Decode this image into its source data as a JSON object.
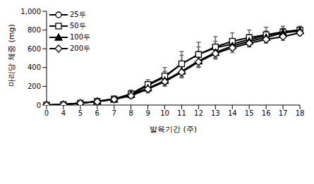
{
  "chart_data": {
    "type": "line",
    "x_label": "발육기간 (주)",
    "y_label": "마리당 체중 (mg)",
    "categories": [
      "0",
      "4",
      "5",
      "6",
      "7",
      "8",
      "9",
      "10",
      "11",
      "12",
      "13",
      "14",
      "15",
      "16",
      "17",
      "18"
    ],
    "ylim": [
      0,
      1000
    ],
    "yticks": [
      0,
      200,
      400,
      600,
      800,
      {
        "value": 1000,
        "label": "1,000"
      }
    ],
    "grid": false,
    "legend": "upper left",
    "series": [
      {
        "name": "25두",
        "color": "#000000",
        "marker": "circle",
        "values": [
          0,
          5,
          20,
          40,
          65,
          110,
          210,
          300,
          440,
          540,
          610,
          650,
          700,
          740,
          780,
          800
        ],
        "errors": [
          0,
          1,
          2,
          5,
          10,
          30,
          40,
          60,
          90,
          80,
          70,
          60,
          50,
          50,
          40,
          30
        ]
      },
      {
        "name": "50두",
        "color": "#000000",
        "marker": "square",
        "values": [
          0,
          5,
          20,
          40,
          65,
          120,
          220,
          310,
          440,
          540,
          620,
          680,
          720,
          750,
          780,
          800
        ],
        "errors": [
          0,
          1,
          2,
          5,
          10,
          40,
          50,
          90,
          130,
          130,
          110,
          90,
          80,
          80,
          60,
          40
        ]
      },
      {
        "name": "100두",
        "color": "#000000",
        "marker": "triangle",
        "values": [
          0,
          5,
          20,
          40,
          60,
          110,
          180,
          260,
          360,
          470,
          560,
          630,
          680,
          720,
          770,
          790
        ],
        "errors": [
          0,
          1,
          2,
          5,
          10,
          30,
          40,
          50,
          60,
          60,
          60,
          50,
          50,
          40,
          40,
          30
        ]
      },
      {
        "name": "200두",
        "color": "#000000",
        "marker": "diamond",
        "values": [
          0,
          5,
          20,
          35,
          60,
          100,
          170,
          250,
          350,
          460,
          550,
          610,
          660,
          700,
          730,
          770
        ],
        "errors": [
          0,
          1,
          2,
          5,
          10,
          30,
          40,
          50,
          60,
          60,
          60,
          50,
          40,
          40,
          40,
          30
        ]
      }
    ]
  }
}
